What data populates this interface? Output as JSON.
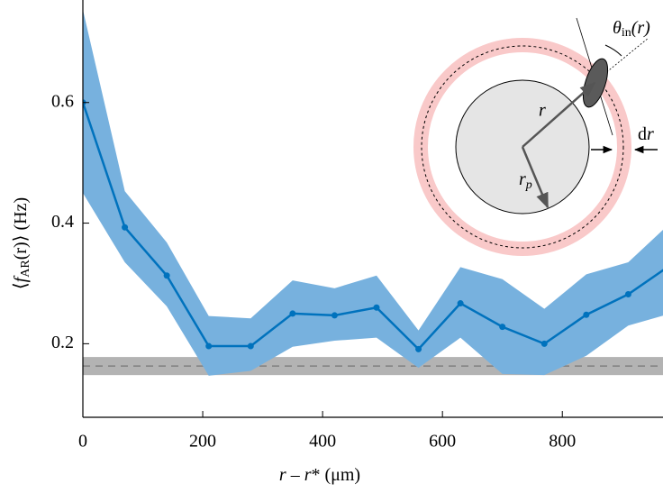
{
  "chart_data": {
    "type": "line",
    "xlabel": {
      "var": "r",
      "dash": " – ",
      "var2": "r",
      "rest": "* (μm)"
    },
    "ylabel": {
      "open": "⟨",
      "var": "f",
      "sub": "AR",
      "arg": "(r)",
      "close": "⟩ (Hz)"
    },
    "x": [
      0,
      70,
      140,
      210,
      280,
      350,
      420,
      490,
      560,
      630,
      700,
      770,
      840,
      910,
      980
    ],
    "series": [
      {
        "color": "#0072bd",
        "band_color": "#77b1de",
        "values": [
          0.6,
          0.393,
          0.313,
          0.196,
          0.196,
          0.25,
          0.247,
          0.26,
          0.191,
          0.267,
          0.228,
          0.2,
          0.248,
          0.282,
          0.33
        ],
        "upper": [
          0.754,
          0.453,
          0.368,
          0.246,
          0.242,
          0.305,
          0.292,
          0.313,
          0.222,
          0.327,
          0.307,
          0.258,
          0.315,
          0.335,
          0.4
        ],
        "lower": [
          0.45,
          0.335,
          0.262,
          0.147,
          0.155,
          0.195,
          0.205,
          0.21,
          0.16,
          0.21,
          0.15,
          0.148,
          0.18,
          0.23,
          0.25
        ]
      }
    ],
    "baseline": {
      "value": 0.163,
      "low": 0.148,
      "high": 0.178,
      "color": "#b3b3b3",
      "line_color": "#808080"
    },
    "xlim": [
      0,
      968
    ],
    "ylim": [
      0.078,
      0.77
    ],
    "xticks": [
      0,
      200,
      400,
      600,
      800
    ],
    "yticks": [
      0.2,
      0.4,
      0.6
    ],
    "inset": {
      "theta": "θ",
      "theta_sub": "in",
      "theta_arg": "(r)",
      "r": "r",
      "rp": "r",
      "rp_sub": "p",
      "dr_d": "d",
      "dr_r": "r"
    }
  }
}
